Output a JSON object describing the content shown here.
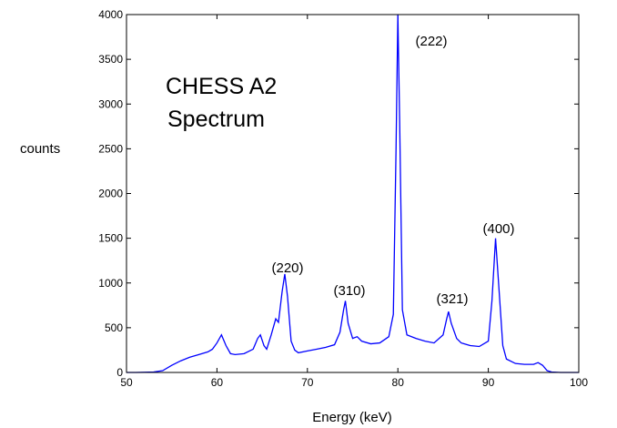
{
  "chart_data": {
    "type": "line",
    "title": "CHESS A2 Spectrum",
    "title_lines": [
      "CHESS A2",
      "Spectrum"
    ],
    "x_label": "Energy (keV)",
    "y_label": "counts",
    "annotations": [
      "(222)",
      "(220)",
      "(310)",
      "(321)",
      "(400)"
    ],
    "x": [
      50,
      51,
      52,
      53,
      54,
      55,
      56,
      57,
      58,
      59,
      59.5,
      60,
      60.5,
      61,
      61.5,
      62,
      63,
      64,
      64.5,
      64.8,
      65.2,
      65.5,
      66,
      66.5,
      66.8,
      67.2,
      67.5,
      67.8,
      68.2,
      68.6,
      69,
      70,
      71,
      72,
      73,
      73.6,
      74,
      74.2,
      74.5,
      75,
      75.5,
      76,
      77,
      78,
      79,
      79.5,
      79.8,
      80,
      80.2,
      80.5,
      81,
      82,
      83,
      84,
      85,
      85.4,
      85.6,
      85.9,
      86.5,
      87,
      88,
      89,
      90,
      90.4,
      90.8,
      91.2,
      91.6,
      92,
      93,
      94,
      95,
      95.5,
      96,
      96.5,
      97,
      98,
      99,
      100
    ],
    "series": [
      {
        "color": "#0000ff",
        "values": [
          0,
          0,
          2,
          5,
          20,
          80,
          130,
          170,
          200,
          230,
          260,
          330,
          420,
          300,
          210,
          200,
          210,
          260,
          380,
          420,
          300,
          260,
          420,
          600,
          560,
          900,
          1100,
          850,
          350,
          250,
          220,
          240,
          260,
          280,
          310,
          450,
          700,
          800,
          550,
          380,
          400,
          350,
          320,
          330,
          400,
          650,
          2500,
          4000,
          2800,
          700,
          420,
          380,
          350,
          330,
          420,
          600,
          680,
          550,
          380,
          330,
          300,
          290,
          350,
          800,
          1500,
          900,
          300,
          150,
          100,
          90,
          90,
          110,
          80,
          20,
          5,
          0,
          0,
          0
        ]
      }
    ],
    "xlim": [
      50,
      100
    ],
    "xticks": [
      50,
      60,
      70,
      80,
      90,
      100
    ],
    "ylim": [
      0,
      4000
    ],
    "yticks": [
      0,
      500,
      1000,
      1500,
      2000,
      2500,
      3000,
      3500,
      4000
    ]
  }
}
